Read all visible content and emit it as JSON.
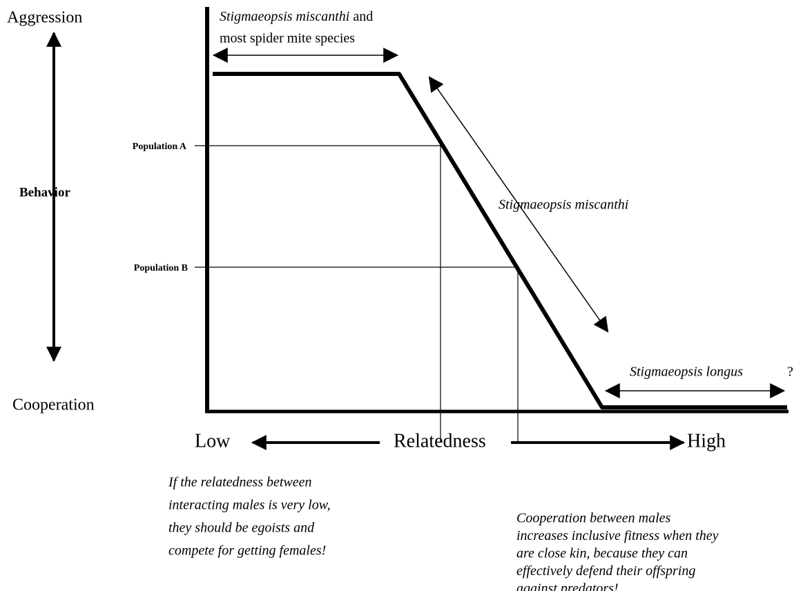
{
  "y_axis": {
    "top": "Aggression",
    "bottom": "Cooperation",
    "label": "Behavior"
  },
  "x_axis": {
    "low": "Low",
    "label": "Relatedness",
    "high": "High"
  },
  "top_label": {
    "species": "Stigmaeopsis miscanthi",
    "rest": "and",
    "line2": "most spider mite species"
  },
  "slope_label": "Stigmaeopsis miscanthi",
  "right_label": {
    "species": "Stigmaeopsis longus",
    "mark": "?"
  },
  "populations": [
    "Population A",
    "Population B"
  ],
  "left_note": [
    "If the relatedness between",
    "interacting males is very low,",
    "they should be egoists and",
    "compete  for getting females!"
  ],
  "right_note": [
    "Cooperation between males",
    "increases inclusive fitness when they",
    "are close kin,  because they can",
    "effectively defend their offspring",
    "against predators!"
  ]
}
